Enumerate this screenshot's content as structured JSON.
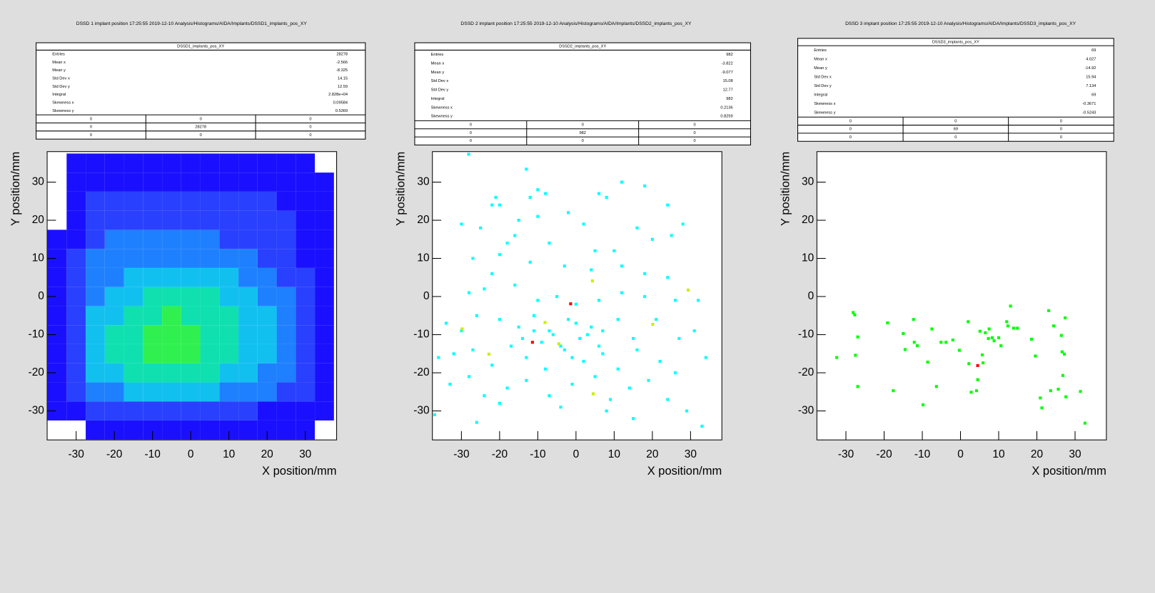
{
  "chart_data": [
    {
      "type": "heatmap",
      "header": "DSSD 1 implant position  17:25:55  2019-12-10  Analysis/Histograms/AIDA/Implants/DSSD1_implants_pos_XY",
      "stats": {
        "title": "DSSD1_implants_pos_XY",
        "rows": [
          {
            "label": "Entries",
            "value": "28278"
          },
          {
            "label": "Mean x",
            "value": "-2.566"
          },
          {
            "label": "Mean y",
            "value": "-8.325"
          },
          {
            "label": "Std Dev x",
            "value": "14.15"
          },
          {
            "label": "Std Dev y",
            "value": "12.59"
          },
          {
            "label": "Integral",
            "value": "2.828e+04"
          },
          {
            "label": "Skewness x",
            "value": "0.09584"
          },
          {
            "label": "Skewness y",
            "value": "0.5369"
          }
        ]
      },
      "overflow": [
        [
          0,
          0,
          0
        ],
        [
          0,
          28278,
          0
        ],
        [
          0,
          0,
          0
        ]
      ],
      "xlabel": "X position/mm",
      "ylabel": "Y position/mm",
      "xlim": [
        -37.6,
        38.2
      ],
      "ylim": [
        -37.6,
        38.0
      ],
      "xticks": [
        -30,
        -20,
        -10,
        0,
        10,
        20,
        30
      ],
      "yticks": [
        -30,
        -20,
        -10,
        0,
        10,
        20,
        30
      ],
      "palette": [
        "#1a10ff",
        "#2a40ff",
        "#1f80ff",
        "#12c0f0",
        "#10e0b0",
        "#30f050"
      ],
      "xbins": [
        -37.5,
        -32.5,
        -27.5,
        -22.5,
        -17.5,
        -12.5,
        -7.5,
        -2.5,
        2.5,
        7.5,
        12.5,
        17.5,
        22.5,
        27.5,
        32.5,
        37.5
      ],
      "ybins": [
        -37.5,
        -32.5,
        -27.5,
        -22.5,
        -17.5,
        -12.5,
        -7.5,
        -2.5,
        2.5,
        7.5,
        12.5,
        17.5,
        22.5,
        27.5,
        32.5,
        37.5
      ],
      "z": [
        [
          0,
          0,
          1,
          2,
          2,
          3,
          2,
          2,
          2,
          1,
          1,
          1,
          1,
          1,
          0
        ],
        [
          3,
          30,
          55,
          70,
          80,
          85,
          85,
          80,
          75,
          65,
          55,
          45,
          32,
          15,
          2
        ],
        [
          8,
          90,
          180,
          225,
          260,
          280,
          285,
          275,
          250,
          220,
          185,
          150,
          110,
          50,
          6
        ],
        [
          12,
          120,
          235,
          300,
          350,
          380,
          385,
          370,
          340,
          300,
          250,
          200,
          145,
          65,
          10
        ],
        [
          15,
          135,
          265,
          345,
          405,
          440,
          450,
          435,
          400,
          355,
          295,
          240,
          170,
          75,
          12
        ],
        [
          15,
          135,
          270,
          350,
          410,
          450,
          465,
          450,
          415,
          370,
          310,
          250,
          180,
          80,
          12
        ],
        [
          12,
          120,
          245,
          315,
          370,
          405,
          420,
          410,
          380,
          340,
          285,
          235,
          170,
          75,
          10
        ],
        [
          8,
          100,
          210,
          270,
          315,
          345,
          360,
          355,
          330,
          295,
          250,
          205,
          150,
          65,
          8
        ],
        [
          5,
          80,
          175,
          225,
          260,
          280,
          290,
          285,
          265,
          240,
          205,
          170,
          125,
          55,
          6
        ],
        [
          3,
          60,
          140,
          180,
          205,
          220,
          225,
          220,
          205,
          185,
          160,
          135,
          100,
          45,
          5
        ],
        [
          2,
          45,
          110,
          140,
          155,
          165,
          165,
          160,
          150,
          138,
          120,
          100,
          78,
          35,
          4
        ],
        [
          0,
          30,
          80,
          100,
          110,
          115,
          115,
          112,
          105,
          98,
          85,
          72,
          55,
          25,
          3
        ],
        [
          0,
          20,
          55,
          70,
          75,
          80,
          80,
          78,
          72,
          65,
          58,
          48,
          35,
          15,
          2
        ],
        [
          0,
          10,
          30,
          40,
          45,
          45,
          45,
          45,
          40,
          38,
          32,
          25,
          18,
          8,
          2
        ],
        [
          0,
          2,
          8,
          12,
          14,
          15,
          14,
          14,
          12,
          10,
          8,
          6,
          4,
          2,
          0
        ]
      ]
    },
    {
      "type": "scatter",
      "header": "DSSD 2 implant position  17:25:55  2019-12-10  Analysis/Histograms/AIDA/Implants/DSSD2_implants_pos_XY",
      "stats": {
        "title": "DSSD2_implants_pos_XY",
        "rows": [
          {
            "label": "Entries",
            "value": "982"
          },
          {
            "label": "Mean x",
            "value": "-3.822"
          },
          {
            "label": "Mean y",
            "value": "-9.077"
          },
          {
            "label": "Std Dev x",
            "value": "15.08"
          },
          {
            "label": "Std Dev y",
            "value": "12.77"
          },
          {
            "label": "Integral",
            "value": "982"
          },
          {
            "label": "Skewness x",
            "value": "0.2136"
          },
          {
            "label": "Skewness y",
            "value": "0.8259"
          }
        ]
      },
      "overflow": [
        [
          0,
          0,
          0
        ],
        [
          0,
          982,
          0
        ],
        [
          0,
          0,
          0
        ]
      ],
      "xlabel": "X position/mm",
      "ylabel": "Y position/mm",
      "xlim": [
        -37.6,
        38.2
      ],
      "ylim": [
        -37.6,
        38.0
      ],
      "xticks": [
        -30,
        -20,
        -10,
        0,
        10,
        20,
        30
      ],
      "yticks": [
        -30,
        -20,
        -10,
        0,
        10,
        20,
        30
      ],
      "palette": [
        "#00ffff",
        "#c8f000",
        "#ff0000"
      ],
      "x": [
        -28.1,
        -13,
        -22,
        -20,
        -21,
        -10,
        -12,
        -8,
        -2,
        6,
        8,
        12,
        18,
        24,
        28,
        -15,
        -16,
        -10,
        -25,
        -30,
        -7,
        2,
        5,
        10,
        16,
        20,
        25,
        -18,
        -20,
        -27,
        -22,
        -12,
        -3,
        4,
        12,
        18,
        24,
        -28,
        -24,
        -16,
        -10,
        -5,
        0,
        6,
        12,
        18,
        26,
        32,
        -34,
        -30,
        -26,
        -20,
        -15,
        -11,
        -7,
        -2,
        3,
        7,
        11,
        15,
        21,
        27,
        31,
        -36,
        -32,
        -27,
        -22,
        -17,
        -13,
        -8,
        -3,
        2,
        7,
        11,
        16,
        22,
        26,
        34,
        -33,
        -28,
        -24,
        -18,
        -13,
        -7,
        -1,
        5,
        9,
        14,
        19,
        24,
        29,
        -37,
        -26,
        -20,
        -4,
        8,
        15,
        33,
        -9,
        -6,
        -4,
        1,
        4,
        -14,
        -1,
        6,
        -11,
        0,
        -29.8,
        -22.8,
        4.3,
        20.1,
        29.4,
        4.5,
        -8.1,
        -4.5,
        -1.4,
        -11.4
      ],
      "values": [
        37.3,
        33.4,
        24,
        24,
        26,
        28,
        26,
        27,
        22,
        27,
        26,
        30,
        29,
        24,
        19,
        20,
        16,
        21,
        18,
        19,
        14,
        19,
        12,
        12,
        18,
        15,
        16,
        14,
        11,
        10,
        6,
        9,
        8,
        7,
        8,
        6,
        5,
        1,
        2,
        3,
        -1,
        0,
        -2,
        -1,
        1,
        0,
        -1,
        -1,
        -7,
        -9,
        -5,
        -6,
        -8,
        -5,
        -9,
        -6,
        -10,
        -9,
        -6,
        -11,
        -6,
        -11,
        -9,
        -16,
        -15,
        -14,
        -18,
        -13,
        -16,
        -19,
        -14,
        -17,
        -15,
        -19,
        -14,
        -17,
        -20,
        -16,
        -23,
        -21,
        -26,
        -24,
        -22,
        -26,
        -23,
        -21,
        -27,
        -24,
        -22,
        -27,
        -30,
        -31,
        -33,
        -28,
        -29,
        -30,
        -32,
        -34,
        -12,
        -10,
        -13,
        -11,
        -8,
        -11,
        -16,
        -13,
        -9,
        -7,
        -8.5,
        -15.1,
        4.1,
        -7.3,
        1.7,
        -25.5,
        -6.8,
        -12.4,
        -1.9,
        -12.0
      ],
      "counts": [
        1,
        1,
        1,
        1,
        1,
        1,
        1,
        1,
        1,
        1,
        1,
        1,
        1,
        1,
        1,
        1,
        1,
        1,
        1,
        1,
        1,
        1,
        1,
        1,
        1,
        1,
        1,
        1,
        1,
        1,
        1,
        1,
        1,
        1,
        1,
        1,
        1,
        1,
        1,
        1,
        1,
        1,
        1,
        1,
        1,
        1,
        1,
        1,
        1,
        1,
        1,
        1,
        1,
        1,
        1,
        1,
        1,
        1,
        1,
        1,
        1,
        1,
        1,
        1,
        1,
        1,
        1,
        1,
        1,
        1,
        1,
        1,
        1,
        1,
        1,
        1,
        1,
        1,
        1,
        1,
        1,
        1,
        1,
        1,
        1,
        1,
        1,
        1,
        1,
        1,
        1,
        1,
        1,
        1,
        1,
        1,
        1,
        1,
        1,
        1,
        1,
        1,
        1,
        1,
        1,
        1,
        1,
        1,
        2,
        2,
        2,
        2,
        2,
        2,
        2,
        2,
        3,
        3
      ]
    },
    {
      "type": "scatter",
      "header": "DSSD 3 implant position  17:25:55  2019-12-10  Analysis/Histograms/AIDA/Implants/DSSD3_implants_pos_XY",
      "stats": {
        "title": "DSSD3_implants_pos_XY",
        "rows": [
          {
            "label": "Entries",
            "value": "69"
          },
          {
            "label": "Mean x",
            "value": "4.027"
          },
          {
            "label": "Mean y",
            "value": "-14.92"
          },
          {
            "label": "Std Dev x",
            "value": "15.94"
          },
          {
            "label": "Std Dev y",
            "value": "7.134"
          },
          {
            "label": "Integral",
            "value": "69"
          },
          {
            "label": "Skewness x",
            "value": "-0.3671"
          },
          {
            "label": "Skewness y",
            "value": "-0.5243"
          }
        ]
      },
      "overflow": [
        [
          0,
          0,
          0
        ],
        [
          0,
          69,
          0
        ],
        [
          0,
          0,
          0
        ]
      ],
      "xlabel": "X position/mm",
      "ylabel": "Y position/mm",
      "xlim": [
        -37.6,
        38.2
      ],
      "ylim": [
        -37.6,
        38.0
      ],
      "xticks": [
        -30,
        -20,
        -10,
        0,
        10,
        20,
        30
      ],
      "yticks": [
        -30,
        -20,
        -10,
        0,
        10,
        20,
        30
      ],
      "palette": [
        "#00ff00",
        "#ff0000"
      ],
      "x": [
        -32.4,
        -28.1,
        -27.7,
        -26.9,
        -27.5,
        -26.9,
        -19.1,
        -17.6,
        -15.0,
        -14.5,
        -12.3,
        -12.1,
        -11.3,
        -9.8,
        -8.6,
        -7.5,
        -6.3,
        -5.1,
        -3.8,
        -2.0,
        -0.3,
        2.0,
        2.2,
        2.8,
        4.2,
        4.5,
        4.5,
        5.1,
        5.7,
        5.9,
        6.5,
        7.5,
        7.3,
        8.3,
        8.8,
        10.0,
        10.6,
        12.1,
        12.4,
        13.1,
        13.9,
        14.9,
        18.6,
        19.6,
        20.9,
        21.3,
        23.1,
        23.6,
        24.4,
        25.6,
        26.4,
        26.6,
        27.2,
        26.8,
        27.4,
        27.6,
        31.4,
        32.6
      ],
      "values": [
        -16.0,
        -4.2,
        -4.8,
        -10.6,
        -15.4,
        -23.6,
        -6.9,
        -24.7,
        -9.7,
        -13.9,
        -6.0,
        -12.0,
        -12.9,
        -28.4,
        -17.2,
        -8.5,
        -23.6,
        -12.0,
        -12.0,
        -11.4,
        -14.1,
        -6.6,
        -17.6,
        -25.1,
        -24.7,
        -18.1,
        -21.8,
        -9.1,
        -15.3,
        -17.4,
        -9.5,
        -8.5,
        -11.0,
        -10.8,
        -11.6,
        -10.8,
        -12.9,
        -6.6,
        -7.7,
        -2.5,
        -8.3,
        -8.3,
        -11.2,
        -15.6,
        -26.6,
        -29.2,
        -3.7,
        -24.7,
        -7.7,
        -24.3,
        -10.2,
        -14.5,
        -15.1,
        -20.7,
        -5.6,
        -26.3,
        -24.9,
        -33.2
      ],
      "counts": [
        1,
        1,
        1,
        1,
        1,
        1,
        1,
        1,
        1,
        1,
        1,
        1,
        1,
        1,
        1,
        1,
        1,
        1,
        1,
        1,
        1,
        1,
        1,
        1,
        1,
        2,
        1,
        1,
        1,
        1,
        1,
        1,
        1,
        1,
        1,
        1,
        1,
        1,
        1,
        1,
        1,
        1,
        1,
        1,
        1,
        1,
        1,
        1,
        1,
        1,
        1,
        1,
        1,
        1,
        1,
        1,
        1,
        1
      ]
    }
  ]
}
